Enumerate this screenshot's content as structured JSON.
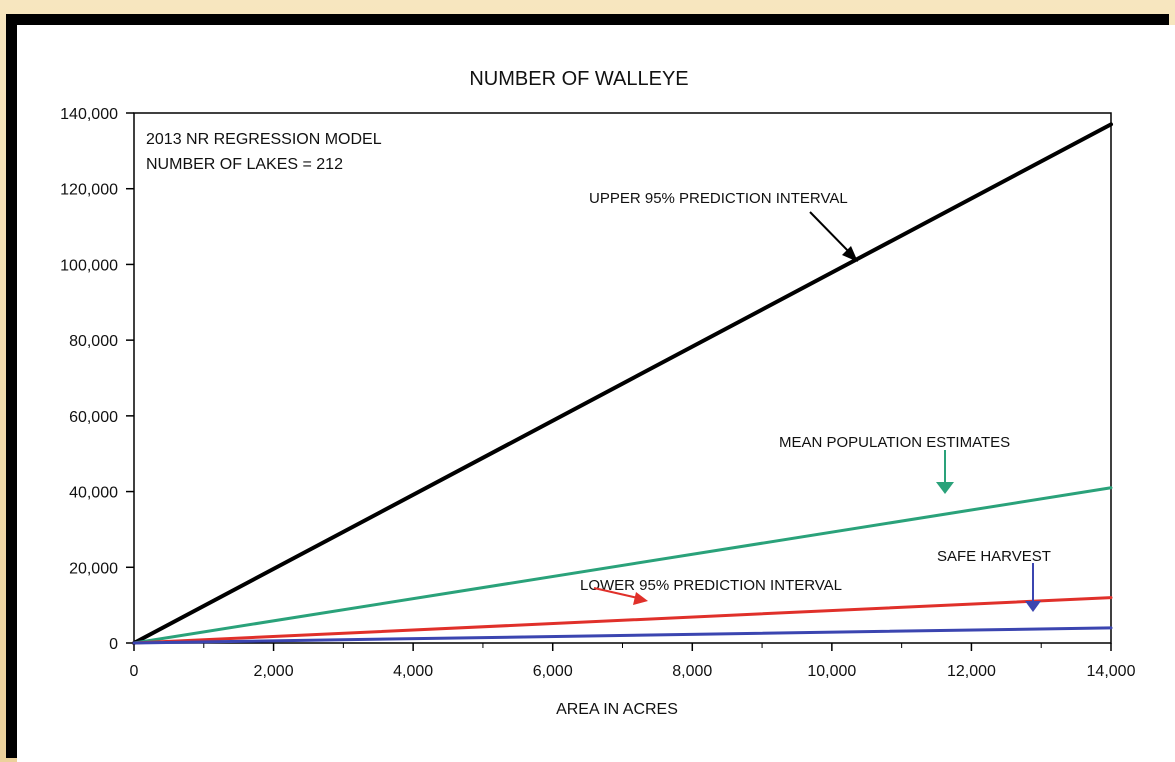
{
  "chart_data": {
    "type": "line",
    "title": "NUMBER OF WALLEYE",
    "xlabel": "AREA IN ACRES",
    "ylabel": "",
    "xlim": [
      0,
      14000
    ],
    "ylim": [
      0,
      140000
    ],
    "x_ticks": [
      0,
      2000,
      4000,
      6000,
      8000,
      10000,
      12000,
      14000
    ],
    "x_tick_labels": [
      "0",
      "2,000",
      "4,000",
      "6,000",
      "8,000",
      "10,000",
      "12,000",
      "14,000"
    ],
    "y_ticks": [
      0,
      20000,
      40000,
      60000,
      80000,
      100000,
      120000,
      140000
    ],
    "y_tick_labels": [
      "0",
      "20,000",
      "40,000",
      "60,000",
      "80,000",
      "100,000",
      "120,000",
      "140,000"
    ],
    "grid": false,
    "legend": "none",
    "info_lines": [
      "2013 NR REGRESSION MODEL",
      "NUMBER OF LAKES = 212"
    ],
    "series": [
      {
        "name": "UPPER 95% PREDICTION INTERVAL",
        "color": "#000000",
        "x": [
          0,
          14000
        ],
        "y": [
          0,
          137000
        ]
      },
      {
        "name": "MEAN POPULATION ESTIMATES",
        "color": "#2aa27a",
        "x": [
          0,
          14000
        ],
        "y": [
          0,
          41000
        ]
      },
      {
        "name": "LOWER 95% PREDICTION INTERVAL",
        "color": "#e0302a",
        "x": [
          0,
          14000
        ],
        "y": [
          0,
          12000
        ]
      },
      {
        "name": "SAFE HARVEST",
        "color": "#3b45b0",
        "x": [
          0,
          14000
        ],
        "y": [
          0,
          4000
        ]
      }
    ],
    "annotations": [
      {
        "text": "UPPER 95% PREDICTION INTERVAL",
        "series": 0,
        "color": "#000000"
      },
      {
        "text": "MEAN POPULATION ESTIMATES",
        "series": 1,
        "color": "#2aa27a"
      },
      {
        "text": "LOWER 95% PREDICTION INTERVAL",
        "series": 2,
        "color": "#e0302a"
      },
      {
        "text": "SAFE HARVEST",
        "series": 3,
        "color": "#3b45b0"
      }
    ]
  }
}
